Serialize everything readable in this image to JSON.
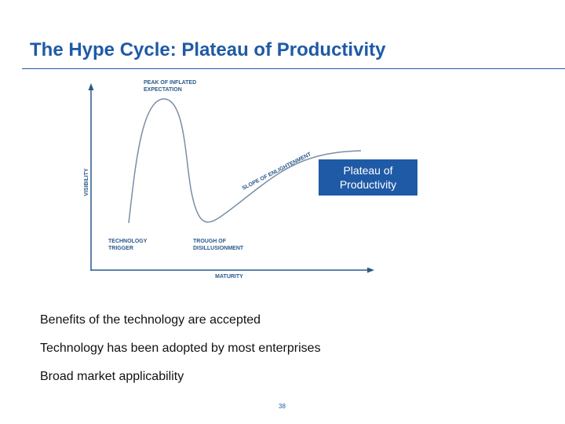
{
  "slide": {
    "title": "The Hype Cycle: Plateau of Productivity",
    "page_number": "38"
  },
  "diagram": {
    "y_axis_label": "VISIBILITY",
    "x_axis_label": "MATURITY",
    "phases": {
      "peak": [
        "PEAK OF INFLATED",
        "EXPECTATION"
      ],
      "trigger": [
        "TECHNOLOGY",
        "TRIGGER"
      ],
      "trough": [
        "TROUGH OF",
        "DISILLUSIONMENT"
      ],
      "slope": "SLOPE OF ENLIGHTENMENT"
    },
    "callout": [
      "Plateau of",
      "Productivity"
    ],
    "colors": {
      "curve": "#7a8ea6",
      "axis": "#2a5a8a",
      "callout_bg": "#1f5aa6",
      "title": "#1f5aa6"
    }
  },
  "bullets": [
    "Benefits of the technology are accepted",
    "Technology has been adopted by most enterprises",
    "Broad market applicability"
  ]
}
